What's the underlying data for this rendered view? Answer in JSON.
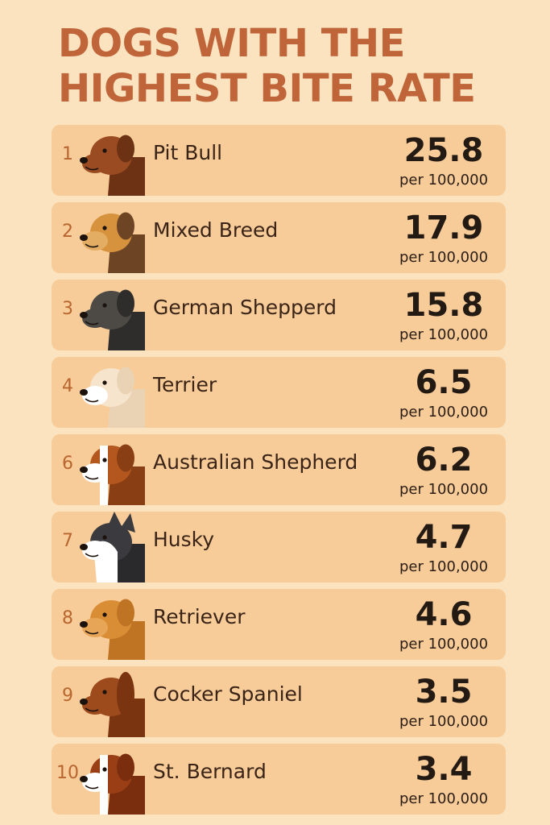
{
  "title_lines": [
    "DOGS WITH THE",
    "HIGHEST BITE RATE"
  ],
  "unit_label": "per 100,000",
  "colors": {
    "background": "#fbe3c0",
    "row_background": "#f8cc98",
    "title": "#c0653a",
    "rank": "#b8652f",
    "text": "#3a2418"
  },
  "chart_data": {
    "type": "table",
    "title": "DOGS WITH THE HIGHEST BITE RATE",
    "columns": [
      "rank",
      "breed",
      "bite_rate"
    ],
    "unit": "per 100,000",
    "rows": [
      {
        "rank": "1",
        "breed": "Pit Bull",
        "value": "25.8",
        "icon": "brown-dog-icon",
        "coat": "#9a4b22",
        "coat_secondary": "#6d3214",
        "muzzle": "#9a4b22"
      },
      {
        "rank": "2",
        "breed": "Mixed Breed",
        "value": "17.9",
        "icon": "tan-dog-icon",
        "coat": "#d6923c",
        "coat_secondary": "#6d4524",
        "muzzle": "#e3ad63"
      },
      {
        "rank": "3",
        "breed": "German Shepperd",
        "value": "15.8",
        "icon": "black-dog-icon",
        "coat": "#4d4a46",
        "coat_secondary": "#2f2d2b",
        "muzzle": "#4d4a46"
      },
      {
        "rank": "4",
        "breed": "Terrier",
        "value": "6.5",
        "icon": "cream-dog-icon",
        "coat": "#f7e4cc",
        "coat_secondary": "#ead2b4",
        "muzzle": "#ffffff"
      },
      {
        "rank": "6",
        "breed": "Australian Shepherd",
        "value": "6.2",
        "icon": "brown-white-dog-icon",
        "coat": "#b3571f",
        "coat_secondary": "#8a3e14",
        "muzzle": "#ffffff"
      },
      {
        "rank": "7",
        "breed": "Husky",
        "value": "4.7",
        "icon": "husky-icon",
        "coat": "#3b3b3f",
        "coat_secondary": "#2a2a2d",
        "muzzle": "#ffffff"
      },
      {
        "rank": "8",
        "breed": "Retriever",
        "value": "4.6",
        "icon": "golden-dog-icon",
        "coat": "#d98e36",
        "coat_secondary": "#bf7424",
        "muzzle": "#e7a657"
      },
      {
        "rank": "9",
        "breed": "Cocker Spaniel",
        "value": "3.5",
        "icon": "spaniel-icon",
        "coat": "#9d4a1d",
        "coat_secondary": "#7a3510",
        "muzzle": "#9d4a1d"
      },
      {
        "rank": "10",
        "breed": "St. Bernard",
        "value": "3.4",
        "icon": "saint-bernard-icon",
        "coat": "#9a3e16",
        "coat_secondary": "#7a2e0e",
        "muzzle": "#ffffff"
      }
    ]
  }
}
